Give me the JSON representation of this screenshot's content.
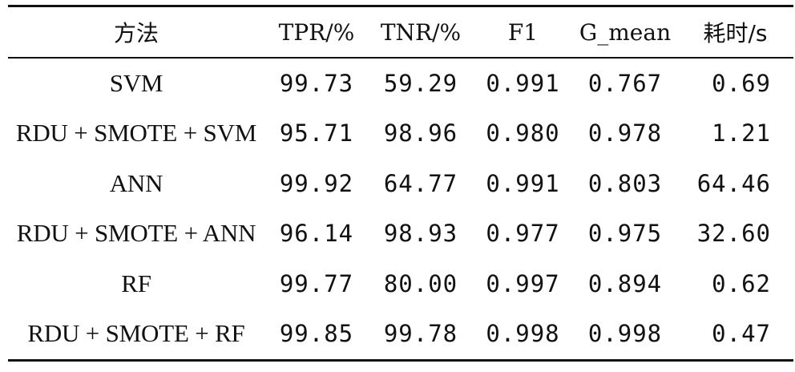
{
  "table": {
    "headers": [
      "方法",
      "TPR/%",
      "TNR/%",
      "F1",
      "G_mean",
      "耗时/s"
    ],
    "rows": [
      [
        "SVM",
        "99.73",
        "59.29",
        "0.991",
        "0.767",
        "0.69"
      ],
      [
        "RDU + SMOTE + SVM",
        "95.71",
        "98.96",
        "0.980",
        "0.978",
        "1.21"
      ],
      [
        "ANN",
        "99.92",
        "64.77",
        "0.991",
        "0.803",
        "64.46"
      ],
      [
        "RDU + SMOTE + ANN",
        "96.14",
        "98.93",
        "0.977",
        "0.975",
        "32.60"
      ],
      [
        "RF",
        "99.77",
        "80.00",
        "0.997",
        "0.894",
        "0.62"
      ],
      [
        "RDU + SMOTE + RF",
        "99.85",
        "99.78",
        "0.998",
        "0.998",
        "0.47"
      ]
    ]
  }
}
